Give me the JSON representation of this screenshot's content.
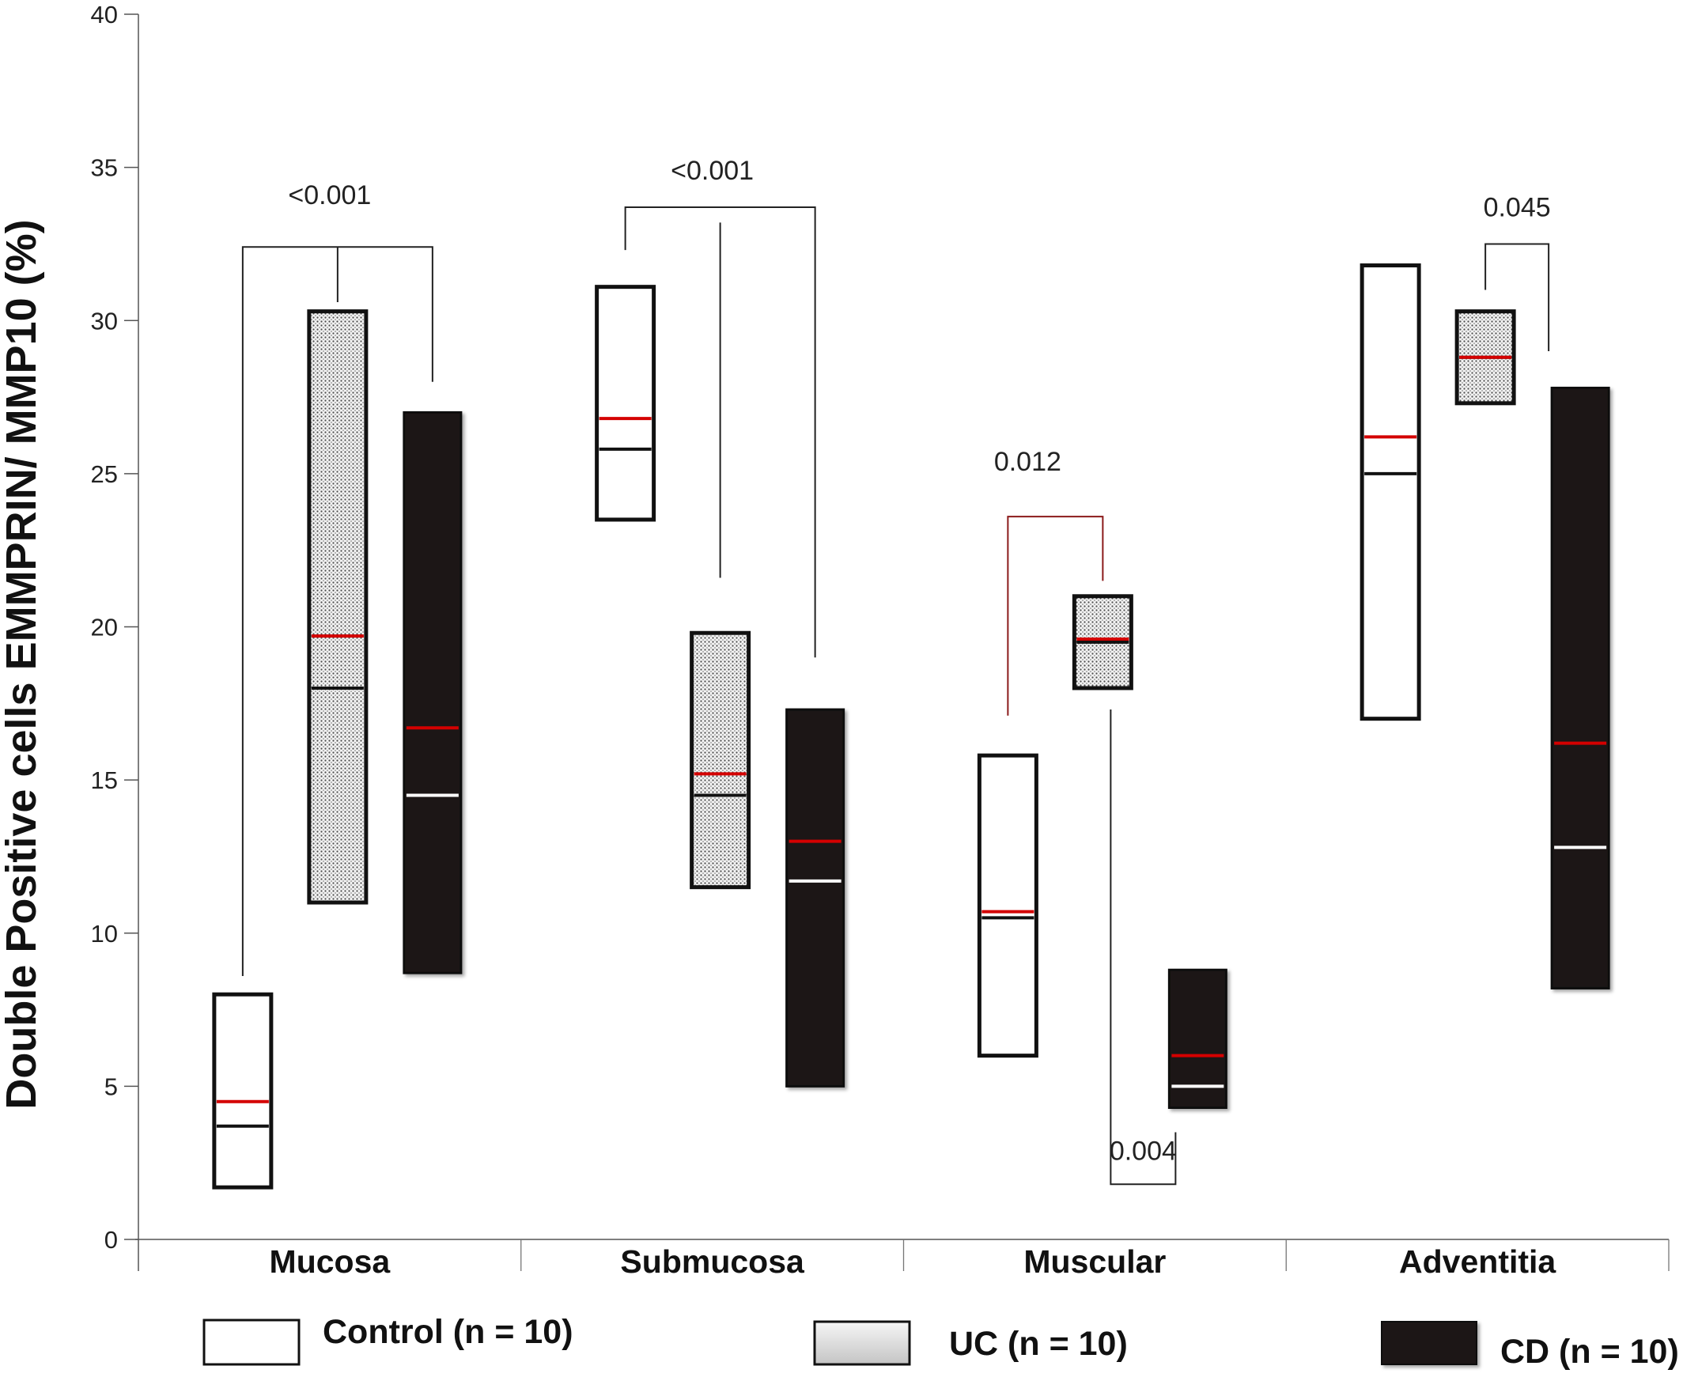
{
  "chart_data": {
    "type": "box",
    "title": "",
    "xlabel": "",
    "ylabel": "Double Positive  cells EMMPRIN/ MMP10  (%)",
    "ylim": [
      0,
      40
    ],
    "yticks": [
      "0",
      "5",
      "10",
      "15",
      "20",
      "25",
      "30",
      "35",
      "40"
    ],
    "categories": [
      "Mucosa",
      "Submucosa",
      "Muscular",
      "Adventitia"
    ],
    "grid": false,
    "legend_position": "bottom",
    "series": [
      {
        "name": "Control (n = 10)",
        "fill": "#ffffff",
        "edge": "#111111",
        "median_color": "#111111",
        "mean_color": "#d40000",
        "boxes": [
          {
            "category": "Mucosa",
            "min": 1.7,
            "max": 8.0,
            "median": 3.7,
            "mean": 4.5
          },
          {
            "category": "Submucosa",
            "min": 23.5,
            "max": 31.1,
            "median": 25.8,
            "mean": 26.8
          },
          {
            "category": "Muscular",
            "min": 6.0,
            "max": 15.8,
            "median": 10.5,
            "mean": 10.7
          },
          {
            "category": "Adventitia",
            "min": 17.0,
            "max": 31.8,
            "median": 25.0,
            "mean": 26.2
          }
        ]
      },
      {
        "name": "UC (n = 10)",
        "fill": "#d4d4d4",
        "edge": "#111111",
        "median_color": "#111111",
        "mean_color": "#d40000",
        "boxes": [
          {
            "category": "Mucosa",
            "min": 11.0,
            "max": 30.3,
            "median": 18.0,
            "mean": 19.7
          },
          {
            "category": "Submucosa",
            "min": 11.5,
            "max": 19.8,
            "median": 14.5,
            "mean": 15.2
          },
          {
            "category": "Muscular",
            "min": 18.0,
            "max": 21.0,
            "median": 19.5,
            "mean": 19.6
          },
          {
            "category": "Adventitia",
            "min": 27.3,
            "max": 30.3,
            "median": 28.8,
            "mean": 28.8
          }
        ]
      },
      {
        "name": "CD (n = 10)",
        "fill": "#1b1815",
        "edge": "#111111",
        "median_color": "#ffffff",
        "mean_color": "#d40000",
        "boxes": [
          {
            "category": "Mucosa",
            "min": 8.7,
            "max": 27.0,
            "median": 14.5,
            "mean": 16.7
          },
          {
            "category": "Submucosa",
            "min": 5.0,
            "max": 17.3,
            "median": 11.7,
            "mean": 13.0
          },
          {
            "category": "Muscular",
            "min": 4.3,
            "max": 8.8,
            "median": 5.0,
            "mean": 6.0
          },
          {
            "category": "Adventitia",
            "min": 8.2,
            "max": 27.8,
            "median": 12.8,
            "mean": 16.2
          }
        ]
      }
    ],
    "annotations": [
      {
        "text": "<0.001",
        "category": "Mucosa",
        "compares": [
          "Control (n = 10)",
          "UC (n = 10)",
          "CD (n = 10)"
        ]
      },
      {
        "text": "<0.001",
        "category": "Submucosa",
        "compares": [
          "Control (n = 10)",
          "UC (n = 10)",
          "CD (n = 10)"
        ]
      },
      {
        "text": "0.012",
        "category": "Muscular",
        "compares": [
          "Control (n = 10)",
          "UC (n = 10)"
        ],
        "color": "#8b1a1a"
      },
      {
        "text": "0.004",
        "category": "Muscular",
        "compares": [
          "UC (n = 10)",
          "CD (n = 10)"
        ]
      },
      {
        "text": "0.045",
        "category": "Adventitia",
        "compares": [
          "UC (n = 10)",
          "CD (n = 10)"
        ]
      }
    ]
  }
}
